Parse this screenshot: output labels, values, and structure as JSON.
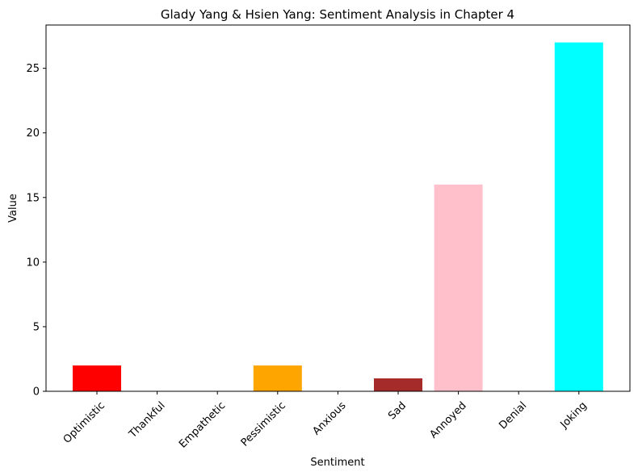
{
  "chart_data": {
    "type": "bar",
    "title": "Glady Yang & Hsien Yang: Sentiment Analysis in Chapter 4",
    "xlabel": "Sentiment",
    "ylabel": "Value",
    "categories": [
      "Optimistic",
      "Thankful",
      "Empathetic",
      "Pessimistic",
      "Anxious",
      "Sad",
      "Annoyed",
      "Denial",
      "Joking"
    ],
    "values": [
      2,
      0,
      0,
      2,
      0,
      1,
      16,
      0,
      27
    ],
    "colors": [
      "#ff0000",
      "#ffffff",
      "#ffffff",
      "#ffa500",
      "#ffffff",
      "#a52a2a",
      "#ffc0cb",
      "#ffffff",
      "#00ffff"
    ],
    "ylim": [
      0,
      28.35
    ],
    "yticks": [
      0,
      5,
      10,
      15,
      20,
      25
    ],
    "grid": false,
    "legend": "none",
    "xtick_rotation": 45
  }
}
